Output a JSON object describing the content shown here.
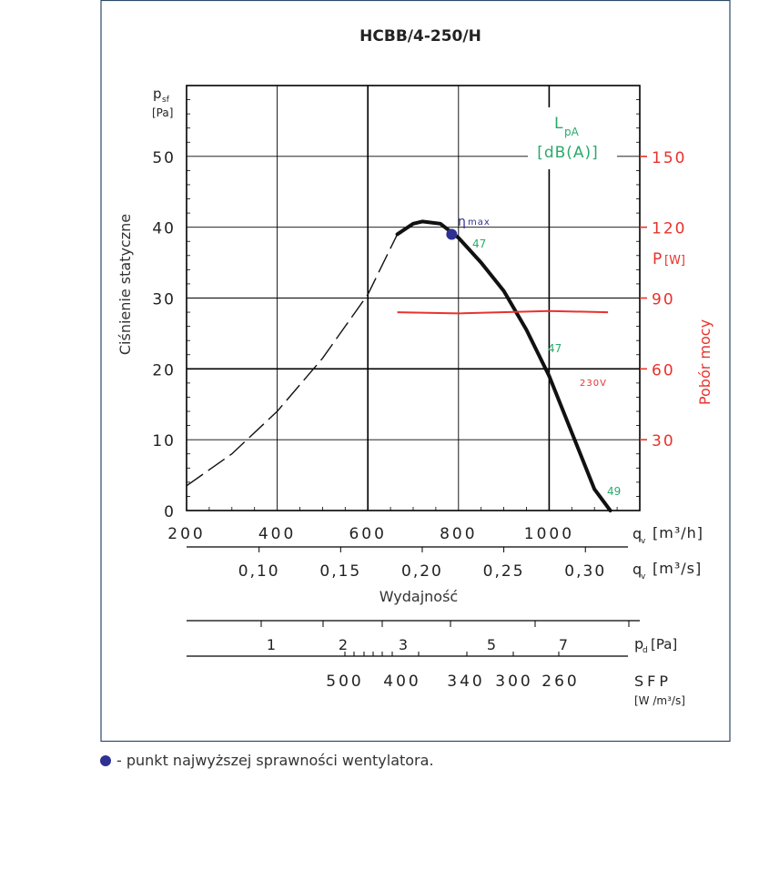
{
  "title": "HCBB/4-250/H",
  "footnote": "- punkt najwyższej sprawności wentylatora.",
  "chart_data": {
    "type": "line",
    "title": "HCBB/4-250/H",
    "ylabel": "Ciśnienie statyczne",
    "y_symbol": "p",
    "y_symbol_sub": "sf",
    "y_unit": "[Pa]",
    "y_ticks": [
      0,
      10,
      20,
      30,
      40,
      50
    ],
    "ylim": [
      0,
      60
    ],
    "x_ticks": [
      200,
      400,
      600,
      800,
      1000
    ],
    "xlim": [
      200,
      1200
    ],
    "x_unit_h": "[m³/h]",
    "x_symbol": "q",
    "x_symbol_sub": "v",
    "x_label": "Wydajność",
    "x2_ticks": [
      "0,10",
      "0,15",
      "0,20",
      "0,25",
      "0,30"
    ],
    "x2_values": [
      0.1,
      0.15,
      0.2,
      0.25,
      0.3
    ],
    "x_unit_s": "[m³/s]",
    "series": [
      {
        "points_dashed": [
          [
            200,
            3.5
          ],
          [
            300,
            8
          ],
          [
            400,
            14
          ],
          [
            500,
            21.5
          ],
          [
            600,
            30.5
          ],
          [
            665,
            39
          ]
        ],
        "points_solid": [
          [
            665,
            39
          ],
          [
            700,
            40.5
          ],
          [
            720,
            40.8
          ],
          [
            760,
            40.5
          ],
          [
            800,
            38.5
          ],
          [
            850,
            35
          ],
          [
            900,
            31
          ],
          [
            950,
            25.5
          ],
          [
            1000,
            19
          ],
          [
            1050,
            11
          ],
          [
            1100,
            3
          ],
          [
            1135,
            0
          ]
        ]
      }
    ],
    "power_series": {
      "label": "230V",
      "points": [
        [
          665,
          84
        ],
        [
          800,
          83.5
        ],
        [
          1000,
          84.5
        ],
        [
          1130,
          84
        ]
      ]
    },
    "eta_max": {
      "x": 785,
      "y": 39,
      "label": "η",
      "label_sup": "max"
    },
    "noise_title": "L",
    "noise_title_sub": "pA",
    "noise_unit": "[dB(A)]",
    "noise_labels": [
      {
        "x": 800,
        "y": 37,
        "text": "47"
      },
      {
        "x": 1000,
        "y": 22,
        "text": "47"
      },
      {
        "x": 1130,
        "y": 2,
        "text": "49"
      }
    ],
    "power_axis": {
      "label": "Pobór mocy",
      "symbol": "P",
      "unit": "[W]",
      "ticks": [
        30,
        60,
        90,
        120,
        150
      ],
      "range": [
        0,
        180
      ]
    },
    "pd_axis": {
      "ticks": [
        "1",
        "2",
        "3",
        "5",
        "7"
      ],
      "values": [
        1,
        2,
        3,
        5,
        7
      ],
      "symbol": "p",
      "symbol_sub": "d",
      "unit": "[Pa]"
    },
    "sfp_axis": {
      "ticks": [
        "500",
        "400",
        "340",
        "300",
        "260"
      ],
      "symbol": "SFP",
      "unit": "[W /m³/s]"
    },
    "colors": {
      "noise": "#2aaa6a",
      "power": "#e8322c",
      "eta": "#2e3192",
      "frame": "#2a4a6a"
    }
  }
}
